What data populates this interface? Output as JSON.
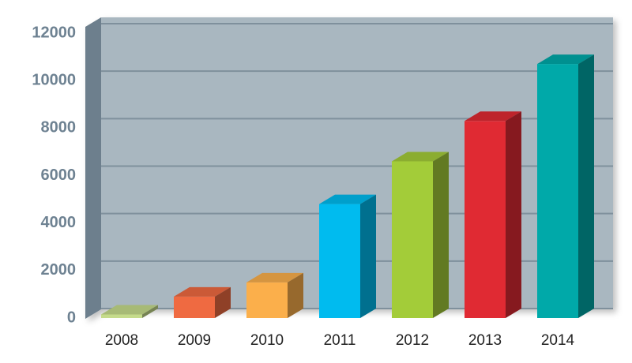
{
  "chart_data": {
    "type": "bar3d",
    "categories": [
      "2008",
      "2009",
      "2010",
      "2011",
      "2012",
      "2013",
      "2014"
    ],
    "values": [
      150,
      900,
      1500,
      4800,
      6600,
      8300,
      10700
    ],
    "colors": [
      "#c5db8b",
      "#ef6a41",
      "#fbaf4b",
      "#00bbef",
      "#a3cc39",
      "#e02a33",
      "#00a9a9"
    ],
    "ylim": [
      0,
      12000
    ],
    "yticks": [
      0,
      2000,
      4000,
      6000,
      8000,
      10000,
      12000
    ],
    "grid": true
  }
}
